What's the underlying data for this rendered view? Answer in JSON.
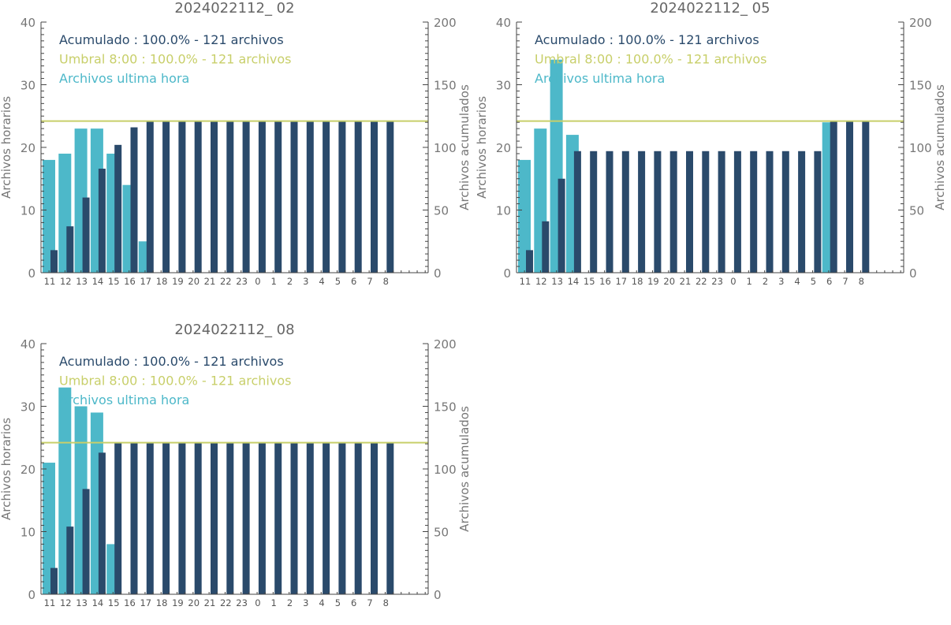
{
  "colors": {
    "hourly": "#4db8c9",
    "cumulative": "#2a4a6b",
    "threshold": "#c8cf6a",
    "axis": "#444444"
  },
  "chart_data": [
    {
      "type": "bar",
      "title": "2024022112_ 02",
      "ylabel_left": "Archivos horarios",
      "ylabel_right": "Archivos acumulados",
      "ylim_left": [
        0,
        40
      ],
      "ylim_right": [
        0,
        200
      ],
      "yticks_left": [
        "0",
        "10",
        "20",
        "30",
        "40"
      ],
      "yticks_right": [
        "0",
        "50",
        "100",
        "150",
        "200"
      ],
      "categories": [
        "11",
        "12",
        "13",
        "14",
        "15",
        "16",
        "17",
        "18",
        "19",
        "20",
        "21",
        "22",
        "23",
        "0",
        "1",
        "2",
        "3",
        "4",
        "5",
        "6",
        "7",
        "8"
      ],
      "legend": [
        "Acumulado : 100.0% - 121 archivos",
        "Umbral 8:00 : 100.0% - 121 archivos",
        "Archivos ultima hora"
      ],
      "threshold": 121,
      "series": [
        {
          "name": "Archivos ultima hora",
          "axis": "left",
          "values": [
            18,
            19,
            23,
            23,
            19,
            14,
            5,
            0,
            0,
            0,
            0,
            0,
            0,
            0,
            0,
            0,
            0,
            0,
            0,
            0,
            0,
            0
          ]
        },
        {
          "name": "Acumulado",
          "axis": "right",
          "values": [
            18,
            37,
            60,
            83,
            102,
            116,
            121,
            121,
            121,
            121,
            121,
            121,
            121,
            121,
            121,
            121,
            121,
            121,
            121,
            121,
            121,
            121
          ]
        }
      ]
    },
    {
      "type": "bar",
      "title": "2024022112_ 05",
      "ylabel_left": "Archivos horarios",
      "ylabel_right": "Archivos acumulados",
      "ylim_left": [
        0,
        40
      ],
      "ylim_right": [
        0,
        200
      ],
      "yticks_left": [
        "0",
        "10",
        "20",
        "30",
        "40"
      ],
      "yticks_right": [
        "0",
        "50",
        "100",
        "150",
        "200"
      ],
      "categories": [
        "11",
        "12",
        "13",
        "14",
        "15",
        "16",
        "17",
        "18",
        "19",
        "20",
        "21",
        "22",
        "23",
        "0",
        "1",
        "2",
        "3",
        "4",
        "5",
        "6",
        "7",
        "8"
      ],
      "legend": [
        "Acumulado : 100.0% - 121 archivos",
        "Umbral 8:00 : 100.0% - 121 archivos",
        "Archivos ultima hora"
      ],
      "threshold": 121,
      "series": [
        {
          "name": "Archivos ultima hora",
          "axis": "left",
          "values": [
            18,
            23,
            34,
            22,
            0,
            0,
            0,
            0,
            0,
            0,
            0,
            0,
            0,
            0,
            0,
            0,
            0,
            0,
            0,
            24,
            0,
            0
          ]
        },
        {
          "name": "Acumulado",
          "axis": "right",
          "values": [
            18,
            41,
            75,
            97,
            97,
            97,
            97,
            97,
            97,
            97,
            97,
            97,
            97,
            97,
            97,
            97,
            97,
            97,
            97,
            121,
            121,
            121
          ]
        }
      ]
    },
    {
      "type": "bar",
      "title": "2024022112_ 08",
      "ylabel_left": "Archivos horarios",
      "ylabel_right": "Archivos acumulados",
      "ylim_left": [
        0,
        40
      ],
      "ylim_right": [
        0,
        200
      ],
      "yticks_left": [
        "0",
        "10",
        "20",
        "30",
        "40"
      ],
      "yticks_right": [
        "0",
        "50",
        "100",
        "150",
        "200"
      ],
      "categories": [
        "11",
        "12",
        "13",
        "14",
        "15",
        "16",
        "17",
        "18",
        "19",
        "20",
        "21",
        "22",
        "23",
        "0",
        "1",
        "2",
        "3",
        "4",
        "5",
        "6",
        "7",
        "8"
      ],
      "legend": [
        "Acumulado : 100.0% - 121 archivos",
        "Umbral 8:00 : 100.0% - 121 archivos",
        "Archivos ultima hora"
      ],
      "threshold": 121,
      "series": [
        {
          "name": "Archivos ultima hora",
          "axis": "left",
          "values": [
            21,
            33,
            30,
            29,
            8,
            0,
            0,
            0,
            0,
            0,
            0,
            0,
            0,
            0,
            0,
            0,
            0,
            0,
            0,
            0,
            0,
            0
          ]
        },
        {
          "name": "Acumulado",
          "axis": "right",
          "values": [
            21,
            54,
            84,
            113,
            121,
            121,
            121,
            121,
            121,
            121,
            121,
            121,
            121,
            121,
            121,
            121,
            121,
            121,
            121,
            121,
            121,
            121
          ]
        }
      ]
    }
  ]
}
